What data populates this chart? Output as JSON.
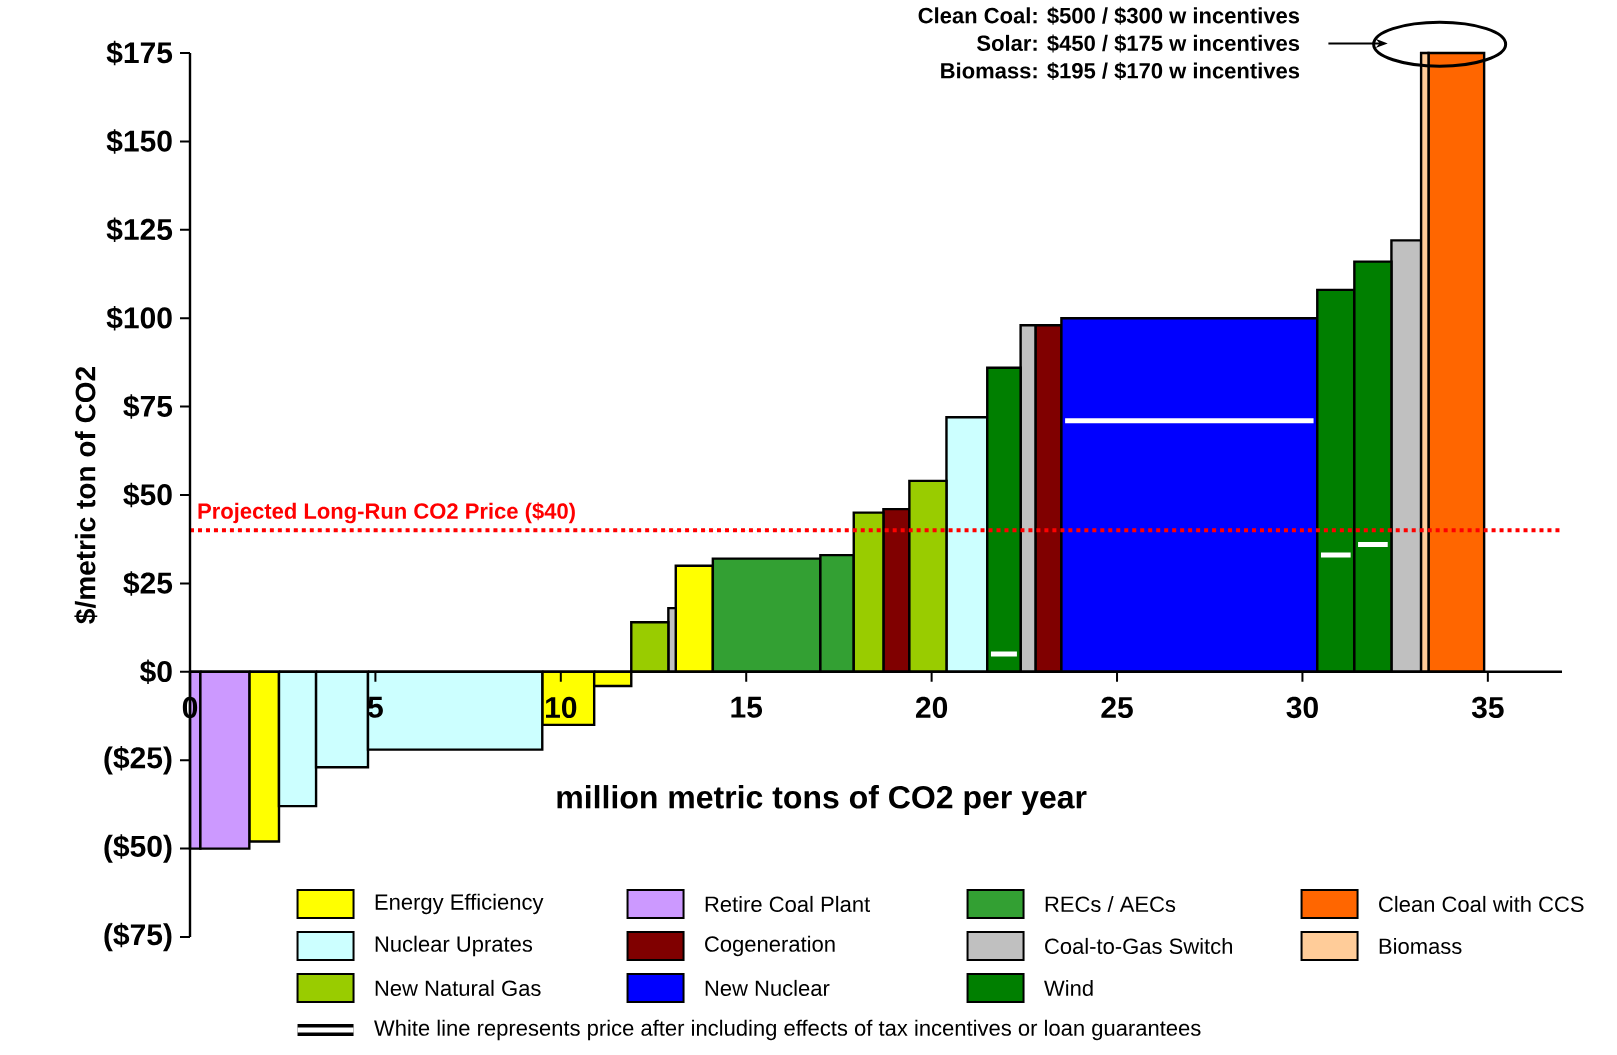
{
  "chart_data": {
    "type": "histogram",
    "xlabel": "million metric tons of CO2 per year",
    "ylabel": "$/metric ton of CO2",
    "bins": [
      0,
      0.28,
      1.6,
      2.4,
      3.4,
      4.8,
      9.5,
      10.9,
      11.9,
      12.9,
      13.1,
      14.1,
      17.0,
      17.9,
      18.7,
      19.4,
      20.4,
      21.5,
      22.4,
      22.8,
      23.5,
      30.4,
      31.4,
      32.4,
      33.2,
      33.4,
      34.9
    ],
    "series": [
      {
        "name": "Energy Efficiency",
        "color": "#ffff00",
        "values": [
          null,
          null,
          -48,
          null,
          null,
          null,
          -15,
          -4,
          null,
          null,
          30,
          null,
          null,
          null,
          null,
          null,
          null,
          null,
          null,
          null,
          null,
          null,
          null,
          null,
          null,
          null
        ]
      },
      {
        "name": "Retire Coal Plant",
        "color": "#cc99ff",
        "values": [
          -50,
          -50,
          null,
          null,
          null,
          null,
          null,
          null,
          null,
          null,
          null,
          null,
          null,
          null,
          null,
          null,
          null,
          null,
          null,
          null,
          null,
          null,
          null,
          null,
          null,
          null
        ]
      },
      {
        "name": "RECs / AECs",
        "color": "#33a033",
        "values": [
          null,
          null,
          null,
          null,
          null,
          null,
          null,
          null,
          null,
          null,
          null,
          32,
          33,
          null,
          null,
          null,
          null,
          null,
          null,
          null,
          null,
          null,
          null,
          null,
          null,
          null
        ]
      },
      {
        "name": "Clean Coal with CCS",
        "color": "#ff6600",
        "values": [
          null,
          null,
          null,
          null,
          null,
          null,
          null,
          null,
          null,
          null,
          null,
          null,
          null,
          null,
          null,
          null,
          null,
          null,
          null,
          null,
          null,
          null,
          null,
          null,
          null,
          175
        ]
      },
      {
        "name": "Nuclear Uprates",
        "color": "#ccffff",
        "values": [
          null,
          null,
          null,
          -38,
          -27,
          -22,
          null,
          null,
          null,
          null,
          null,
          null,
          null,
          null,
          null,
          null,
          72,
          null,
          null,
          null,
          null,
          null,
          null,
          null,
          null,
          null
        ]
      },
      {
        "name": "Cogeneration",
        "color": "#800000",
        "values": [
          null,
          null,
          null,
          null,
          null,
          null,
          null,
          null,
          null,
          null,
          null,
          null,
          null,
          null,
          46,
          null,
          null,
          null,
          null,
          98,
          null,
          null,
          null,
          null,
          null,
          null
        ]
      },
      {
        "name": "Coal-to-Gas Switch",
        "color": "#c0c0c0",
        "values": [
          null,
          null,
          null,
          null,
          null,
          null,
          null,
          null,
          null,
          18,
          null,
          null,
          null,
          null,
          null,
          null,
          null,
          null,
          98,
          null,
          null,
          null,
          null,
          122,
          null,
          null
        ]
      },
      {
        "name": "Biomass",
        "color": "#ffcc99",
        "values": [
          null,
          null,
          null,
          null,
          null,
          null,
          null,
          null,
          null,
          null,
          null,
          null,
          null,
          null,
          null,
          null,
          null,
          null,
          null,
          null,
          null,
          null,
          null,
          null,
          175,
          null
        ]
      },
      {
        "name": "New Natural Gas",
        "color": "#99cc00",
        "values": [
          null,
          null,
          null,
          null,
          null,
          null,
          null,
          null,
          14,
          null,
          null,
          null,
          null,
          45,
          null,
          54,
          null,
          null,
          null,
          null,
          null,
          null,
          null,
          null,
          null,
          null
        ]
      },
      {
        "name": "New Nuclear",
        "color": "#0000ff",
        "values": [
          null,
          null,
          null,
          null,
          null,
          null,
          null,
          null,
          null,
          null,
          null,
          null,
          null,
          null,
          null,
          null,
          null,
          null,
          null,
          null,
          100,
          null,
          null,
          null,
          null,
          null
        ]
      },
      {
        "name": "Wind",
        "color": "#007f00",
        "values": [
          null,
          null,
          null,
          null,
          null,
          null,
          null,
          null,
          null,
          null,
          null,
          null,
          null,
          null,
          null,
          null,
          null,
          86,
          null,
          null,
          null,
          108,
          116,
          null,
          null,
          null
        ]
      },
      {
        "name": "White line represents price after including effects of tax incentives or loan guarantees",
        "type": "line",
        "color": "#ffffff",
        "x": [
          21.6,
          22.3,
          null,
          23.6,
          30.3,
          null,
          30.5,
          31.3,
          null,
          31.5,
          32.3
        ],
        "values": [
          5,
          5,
          null,
          71,
          71,
          null,
          33,
          33,
          null,
          36,
          36
        ]
      }
    ],
    "xlim": [
      0,
      37
    ],
    "ylim": [
      -75,
      175
    ],
    "xticks": [
      0,
      5,
      10,
      15,
      20,
      25,
      30,
      35
    ],
    "yticks": [
      {
        "value": -75,
        "label": "($75)"
      },
      {
        "value": -50,
        "label": "($50)"
      },
      {
        "value": -25,
        "label": "($25)"
      },
      {
        "value": 0,
        "label": "$0"
      },
      {
        "value": 25,
        "label": "$25"
      },
      {
        "value": 50,
        "label": "$50"
      },
      {
        "value": 75,
        "label": "$75"
      },
      {
        "value": 100,
        "label": "$100"
      },
      {
        "value": 125,
        "label": "$125"
      },
      {
        "value": 150,
        "label": "$150"
      },
      {
        "value": 175,
        "label": "$175"
      }
    ],
    "ref_lines": [
      {
        "axis": "y",
        "value": 40,
        "label": "Projected Long-Run CO2 Price ($40)",
        "color": "#ff0000",
        "line_style": "dotted"
      }
    ],
    "annotations": [
      "Clean Coal: $500 / $300 w incentives",
      "Solar: $450 / $175 w incentives",
      "Biomass: $195 / $170 w incentives"
    ],
    "legend": "bottom"
  }
}
